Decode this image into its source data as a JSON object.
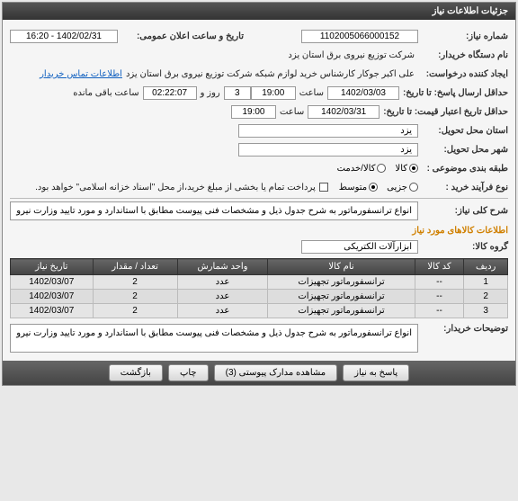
{
  "header": {
    "title": "جزئیات اطلاعات نیاز"
  },
  "fields": {
    "need_no_label": "شماره نیاز:",
    "need_no": "1102005066000152",
    "date_label": "تاریخ و ساعت اعلان عمومی:",
    "date_val": "1402/02/31 - 16:20",
    "org_label": "نام دستگاه خریدار:",
    "org_val": "شرکت توزیع نیروی برق استان یزد",
    "requester_label": "ایجاد کننده درخواست:",
    "requester_val": "علی اکبر جوکار  کارشناس خرید لوازم شبکه  شرکت توزیع نیروی برق استان یزد",
    "contact_link": "اطلاعات تماس خریدار",
    "deadline_label": "حداقل ارسال پاسخ: تا تاریخ:",
    "deadline_date": "1402/03/03",
    "time_label": "ساعت",
    "deadline_time": "19:00",
    "days": "3",
    "days_label": "روز و",
    "remain": "02:22:07",
    "remain_label": "ساعت باقی مانده",
    "valid_label": "حداقل تاریخ اعتبار قیمت: تا تاریخ:",
    "valid_date": "1402/03/31",
    "valid_time": "19:00",
    "province_label": "استان محل تحویل:",
    "province": "یزد",
    "city_label": "شهر محل تحویل:",
    "city": "یزد",
    "cat_label": "طبقه بندی موضوعی :",
    "cat_goods": "کالا",
    "cat_service": "کالا/خدمت",
    "type_label": "نوع فرآیند خرید :",
    "type_minor": "جزیی",
    "type_medium": "متوسط",
    "pay_note": "پرداخت تمام یا بخشی از مبلغ خرید،از محل \"اسناد خزانه اسلامی\" خواهد بود.",
    "desc_label": "شرح کلی نیاز:",
    "desc_val": "انواع ترانسفورماتور  به شرح جدول ذیل و مشخصات فنی پیوست مطابق با استاندارد و مورد تایید وزارت نیرو",
    "group_section": "اطلاعات کالاهای مورد نیاز",
    "group_label": "گروه کالا:",
    "group_val": "ابزارآلات الکتریکی",
    "buyer_note_label": "توضیحات خریدار:",
    "buyer_note_val": "انواع ترانسفورماتور  به شرح جدول ذیل و مشخصات فنی پیوست مطابق با استاندارد و مورد تایید وزارت نیرو"
  },
  "table": {
    "headers": [
      "ردیف",
      "کد کالا",
      "نام کالا",
      "واحد شمارش",
      "تعداد / مقدار",
      "تاریخ نیاز"
    ],
    "rows": [
      [
        "1",
        "--",
        "ترانسفورماتور تجهیزات",
        "عدد",
        "2",
        "1402/03/07"
      ],
      [
        "2",
        "--",
        "ترانسفورماتور تجهیزات",
        "عدد",
        "2",
        "1402/03/07"
      ],
      [
        "3",
        "--",
        "ترانسفورماتور تجهیزات",
        "عدد",
        "2",
        "1402/03/07"
      ]
    ]
  },
  "buttons": {
    "respond": "پاسخ به نیاز",
    "attachments": "مشاهده مدارک پیوستی (3)",
    "print": "چاپ",
    "back": "بازگشت"
  }
}
